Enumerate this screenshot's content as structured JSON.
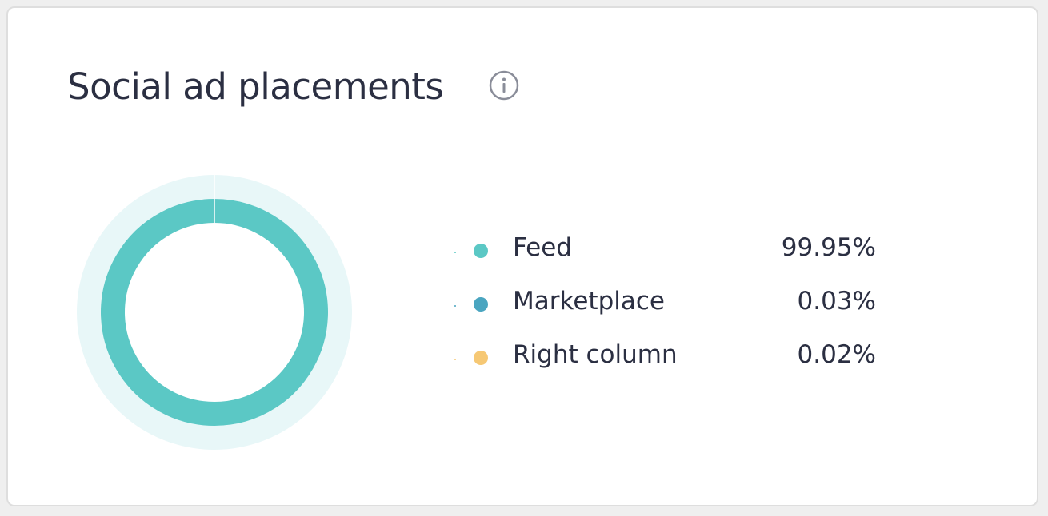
{
  "title": "Social ad placements",
  "info_icon": "info-circle-icon",
  "colors": {
    "halo": "#e8f7f8",
    "title": "#2b2f42"
  },
  "chart_data": {
    "type": "pie",
    "style": "donut",
    "legend_placement": "right",
    "slices": [
      {
        "label": "Feed",
        "value": 99.95,
        "display": "99.95%",
        "color": "#5bc8c5"
      },
      {
        "label": "Marketplace",
        "value": 0.03,
        "display": "0.03%",
        "color": "#4aa5c0"
      },
      {
        "label": "Right column",
        "value": 0.02,
        "display": "0.02%",
        "color": "#f6c874"
      }
    ]
  }
}
